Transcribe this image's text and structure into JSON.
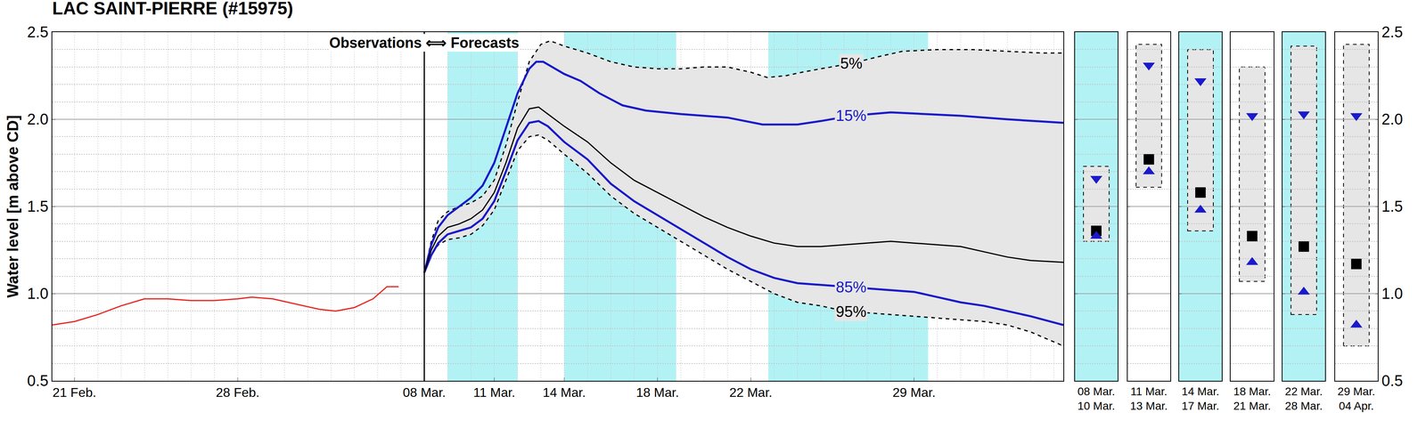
{
  "chart_data": [
    {
      "type": "line",
      "title": "LAC SAINT-PIERRE (#15975)",
      "y_label": "Water level [m above CD]",
      "xlim": [
        51.05,
        94.4
      ],
      "xticks": [
        {
          "value": 52,
          "label": "21 Feb."
        },
        {
          "value": 59,
          "label": "28 Feb."
        },
        {
          "value": 67,
          "label": "08 Mar."
        },
        {
          "value": 70,
          "label": "11 Mar."
        },
        {
          "value": 73,
          "label": "14 Mar."
        },
        {
          "value": 77,
          "label": "18 Mar."
        },
        {
          "value": 81,
          "label": "22 Mar."
        },
        {
          "value": 88,
          "label": "29 Mar."
        }
      ],
      "ylim": [
        0.5,
        2.5
      ],
      "yticks": [
        0.5,
        {
          "value": 1,
          "label": "1.0"
        },
        1.5,
        {
          "value": 2,
          "label": "2.0"
        },
        2.5
      ],
      "grid": true,
      "forecast_start": 67,
      "annotations": [
        {
          "text": "Observations ⟺ Forecasts",
          "x": 67,
          "y": 2.44
        }
      ],
      "bands": [
        {
          "from": 68,
          "to": 71,
          "color": "#b2f2f5"
        },
        {
          "from": 73,
          "to": 77.8,
          "color": "#b2f2f5"
        },
        {
          "from": 81.75,
          "to": 88.6,
          "color": "#b2f2f5"
        }
      ],
      "series": [
        {
          "color": "#e8231d",
          "line_style": "solid",
          "x": [
            51.05,
            52,
            53,
            54,
            55,
            56,
            57,
            58,
            59,
            59.6,
            60.5,
            61.5,
            62.5,
            63.2,
            64,
            64.8,
            65.4,
            65.9
          ],
          "values": [
            0.82,
            0.84,
            0.88,
            0.93,
            0.97,
            0.97,
            0.96,
            0.96,
            0.97,
            0.98,
            0.97,
            0.94,
            0.91,
            0.9,
            0.92,
            0.97,
            1.04,
            1.04
          ]
        },
        {
          "name": "95%",
          "color": "#000000",
          "line_style": "dashed",
          "label_x": 85.3,
          "x": [
            67,
            67.3,
            67.6,
            68,
            68.5,
            69,
            69.5,
            70,
            70.5,
            71,
            71.5,
            71.9,
            72.3,
            73,
            74,
            75,
            76,
            77,
            78,
            79,
            80,
            81,
            82,
            83,
            84,
            85,
            86,
            87,
            88,
            89,
            90,
            91,
            92,
            93,
            94.4
          ],
          "values": [
            1.12,
            1.22,
            1.28,
            1.31,
            1.32,
            1.34,
            1.39,
            1.48,
            1.65,
            1.82,
            1.9,
            1.91,
            1.88,
            1.8,
            1.69,
            1.56,
            1.46,
            1.38,
            1.3,
            1.22,
            1.14,
            1.07,
            1.0,
            0.95,
            0.93,
            0.9,
            0.89,
            0.88,
            0.87,
            0.86,
            0.85,
            0.84,
            0.82,
            0.78,
            0.7
          ]
        },
        {
          "name": "5%",
          "color": "#000000",
          "line_style": "dashed",
          "label_x": 85.3,
          "x": [
            67,
            67.3,
            67.6,
            68,
            68.5,
            69,
            69.5,
            70,
            70.5,
            71,
            71.5,
            72,
            72.4,
            73,
            74,
            75,
            76,
            77,
            78,
            79,
            80,
            81,
            81.7,
            82.5,
            83.2,
            84,
            85.3,
            86.5,
            87.5,
            89,
            90.5,
            92,
            93.5,
            94.4
          ],
          "values": [
            1.12,
            1.3,
            1.42,
            1.47,
            1.5,
            1.52,
            1.56,
            1.65,
            1.85,
            2.1,
            2.33,
            2.43,
            2.45,
            2.42,
            2.38,
            2.33,
            2.3,
            2.29,
            2.29,
            2.3,
            2.3,
            2.27,
            2.24,
            2.25,
            2.27,
            2.29,
            2.32,
            2.36,
            2.39,
            2.4,
            2.4,
            2.39,
            2.38,
            2.38
          ]
        },
        {
          "name": "85%",
          "color": "#1a1acc",
          "line_style": "solid",
          "label_x": 85.3,
          "x": [
            67,
            67.3,
            67.6,
            68,
            68.5,
            69,
            69.5,
            70,
            70.5,
            71,
            71.5,
            71.9,
            72.3,
            73,
            74,
            75,
            76,
            77,
            78,
            79,
            80,
            81,
            82,
            83,
            84,
            85,
            86,
            87,
            88,
            89,
            90,
            91,
            92,
            93,
            94.4
          ],
          "values": [
            1.12,
            1.22,
            1.29,
            1.34,
            1.36,
            1.38,
            1.43,
            1.53,
            1.7,
            1.88,
            1.98,
            1.99,
            1.96,
            1.87,
            1.77,
            1.63,
            1.53,
            1.45,
            1.37,
            1.29,
            1.21,
            1.14,
            1.09,
            1.06,
            1.05,
            1.04,
            1.03,
            1.02,
            1.01,
            0.98,
            0.95,
            0.93,
            0.9,
            0.87,
            0.82
          ]
        },
        {
          "name": "15%",
          "color": "#1a1acc",
          "line_style": "solid",
          "label_x": 85.3,
          "x": [
            67,
            67.3,
            67.6,
            68,
            68.5,
            69,
            69.5,
            70,
            70.5,
            71,
            71.5,
            71.8,
            72.1,
            72.5,
            73,
            73.7,
            74.5,
            75.5,
            76.5,
            78,
            80,
            81.5,
            83,
            84,
            85.3,
            87,
            88.5,
            90,
            92,
            94.4
          ],
          "values": [
            1.12,
            1.28,
            1.38,
            1.45,
            1.5,
            1.55,
            1.62,
            1.75,
            1.95,
            2.15,
            2.29,
            2.33,
            2.33,
            2.3,
            2.26,
            2.22,
            2.15,
            2.08,
            2.05,
            2.03,
            2.01,
            1.97,
            1.97,
            1.99,
            2.02,
            2.04,
            2.03,
            2.02,
            2.0,
            1.98
          ]
        },
        {
          "color": "#000000",
          "line_style": "solid",
          "x": [
            67,
            67.3,
            67.6,
            68,
            68.5,
            69,
            69.5,
            70,
            70.5,
            71,
            71.5,
            71.9,
            72.3,
            73,
            74,
            75,
            76,
            77,
            78,
            79,
            80,
            81,
            82,
            83,
            84,
            85,
            86,
            87,
            88,
            89,
            90,
            91,
            92,
            93,
            94.4
          ],
          "values": [
            1.12,
            1.25,
            1.33,
            1.38,
            1.4,
            1.43,
            1.48,
            1.58,
            1.75,
            1.95,
            2.06,
            2.07,
            2.03,
            1.96,
            1.87,
            1.75,
            1.65,
            1.58,
            1.51,
            1.44,
            1.38,
            1.33,
            1.29,
            1.27,
            1.27,
            1.28,
            1.29,
            1.3,
            1.29,
            1.28,
            1.27,
            1.24,
            1.21,
            1.19,
            1.18
          ]
        }
      ]
    },
    {
      "type": "range",
      "categories": [
        "08 Mar.\n10 Mar.",
        "11 Mar.\n13 Mar.",
        "14 Mar.\n17 Mar.",
        "18 Mar.\n21 Mar.",
        "22 Mar.\n28 Mar.",
        "29 Mar.\n04 Apr."
      ],
      "colors": [
        "#b2f2f5",
        "#ffffff",
        "#b2f2f5",
        "#ffffff",
        "#b2f2f5",
        "#ffffff"
      ],
      "ylim": [
        0.5,
        2.5
      ],
      "yticks": [
        0.5,
        {
          "value": 1,
          "label": "1.0"
        },
        1.5,
        {
          "value": 2,
          "label": "2.0"
        },
        2.5
      ],
      "grid": true,
      "low": [
        1.3,
        1.61,
        1.36,
        1.07,
        0.88,
        0.7
      ],
      "high": [
        1.73,
        2.43,
        2.4,
        2.3,
        2.42,
        2.43
      ],
      "series": [
        {
          "color": "#1a1acc",
          "marker": "triangle-down",
          "values": [
            1.66,
            2.31,
            2.22,
            2.02,
            2.03,
            2.02
          ]
        },
        {
          "color": "#000000",
          "marker": "square",
          "values": [
            1.36,
            1.77,
            1.58,
            1.33,
            1.27,
            1.17
          ]
        },
        {
          "color": "#1a1acc",
          "marker": "triangle-up",
          "values": [
            1.33,
            1.7,
            1.48,
            1.18,
            1.01,
            0.82
          ]
        }
      ]
    }
  ]
}
